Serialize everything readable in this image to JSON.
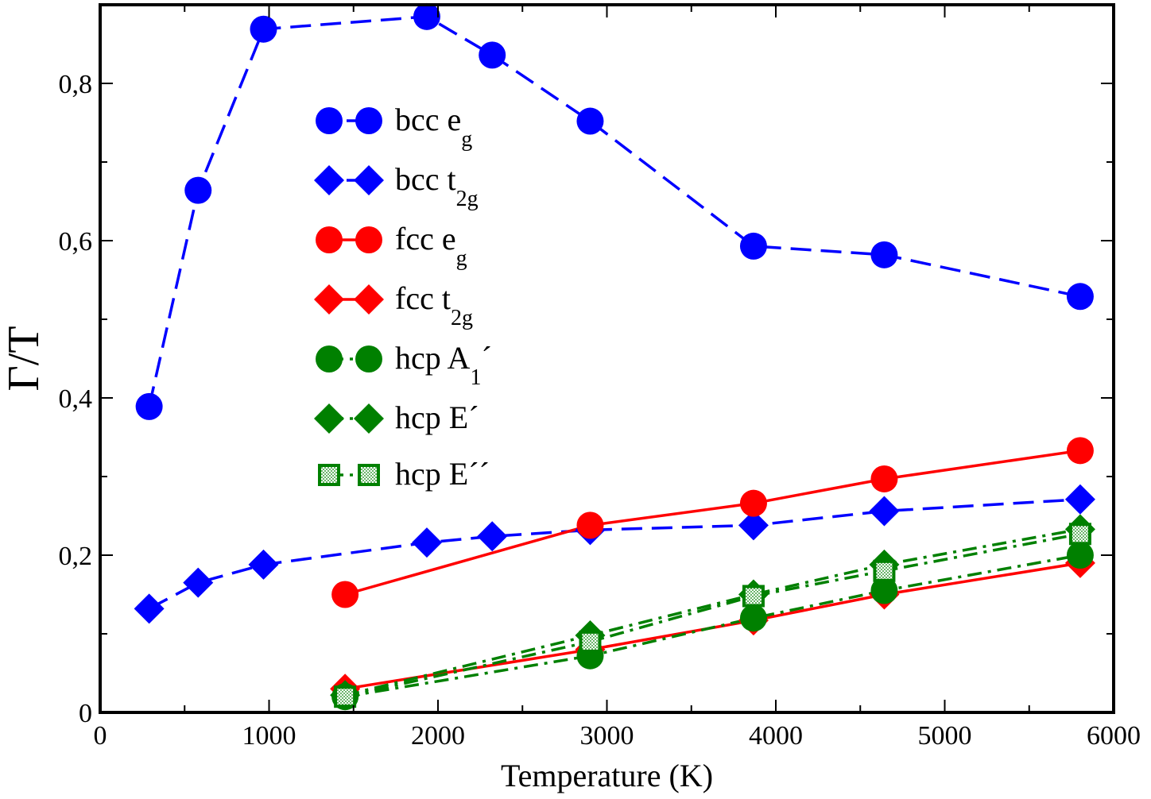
{
  "chart_data": {
    "type": "line",
    "title": "",
    "xlabel": "Temperature (K)",
    "ylabel": "Γ/T",
    "xlim": [
      0,
      6000
    ],
    "ylim": [
      0,
      0.9
    ],
    "x_ticks": [
      {
        "value": 0,
        "label": "0"
      },
      {
        "value": 1000,
        "label": "1000"
      },
      {
        "value": 2000,
        "label": "2000"
      },
      {
        "value": 3000,
        "label": "3000"
      },
      {
        "value": 4000,
        "label": "4000"
      },
      {
        "value": 5000,
        "label": "5000"
      },
      {
        "value": 6000,
        "label": "6000"
      }
    ],
    "y_ticks": [
      {
        "value": 0,
        "label": "0"
      },
      {
        "value": 0.2,
        "label": "0,2"
      },
      {
        "value": 0.4,
        "label": "0,4"
      },
      {
        "value": 0.6,
        "label": "0,6"
      },
      {
        "value": 0.8,
        "label": "0,8"
      }
    ],
    "grid": false,
    "legend_position": "upper-left-center",
    "series": [
      {
        "name": "bcc e_g",
        "label_main": "bcc e",
        "label_sub": "g",
        "label_sup": "",
        "color": "#0000ff",
        "line": "dashed",
        "marker": "circle",
        "x": [
          290,
          580,
          967,
          1934,
          2321,
          2901,
          3868,
          4642,
          5802
        ],
        "y": [
          0.389,
          0.664,
          0.869,
          0.885,
          0.836,
          0.752,
          0.593,
          0.582,
          0.529
        ]
      },
      {
        "name": "bcc t_2g",
        "label_main": "bcc t",
        "label_sub": "2g",
        "label_sup": "",
        "color": "#0000ff",
        "line": "dashed",
        "marker": "diamond",
        "x": [
          290,
          580,
          967,
          1934,
          2321,
          2901,
          3868,
          4642,
          5802
        ],
        "y": [
          0.132,
          0.165,
          0.188,
          0.216,
          0.224,
          0.232,
          0.238,
          0.256,
          0.271
        ]
      },
      {
        "name": "fcc e_g",
        "label_main": "fcc e",
        "label_sub": "g",
        "label_sup": "",
        "color": "#ff0000",
        "line": "solid",
        "marker": "circle",
        "x": [
          1450,
          2901,
          3868,
          4642,
          5802
        ],
        "y": [
          0.15,
          0.238,
          0.266,
          0.297,
          0.333
        ]
      },
      {
        "name": "fcc t_2g",
        "label_main": "fcc t",
        "label_sub": "2g",
        "label_sup": "",
        "color": "#ff0000",
        "line": "solid",
        "marker": "diamond",
        "x": [
          1450,
          2901,
          3868,
          4642,
          5802
        ],
        "y": [
          0.03,
          0.08,
          0.117,
          0.15,
          0.19
        ]
      },
      {
        "name": "hcp A_1´",
        "label_main": "hcp A",
        "label_sub": "1",
        "label_sup": "´",
        "color": "#008000",
        "line": "dashdot",
        "marker": "circle",
        "x": [
          1450,
          2901,
          3868,
          4642,
          5802
        ],
        "y": [
          0.02,
          0.072,
          0.12,
          0.155,
          0.2
        ]
      },
      {
        "name": "hcp E´",
        "label_main": "hcp E",
        "label_sub": "",
        "label_sup": "´",
        "color": "#008000",
        "line": "dashdot",
        "marker": "diamond",
        "x": [
          1450,
          2901,
          3868,
          4642,
          5802
        ],
        "y": [
          0.022,
          0.098,
          0.15,
          0.188,
          0.233
        ]
      },
      {
        "name": "hcp E´´",
        "label_main": "hcp E",
        "label_sub": "",
        "label_sup": "´´",
        "color": "#008000",
        "line": "dashdot",
        "marker": "square-dotted",
        "x": [
          1450,
          2901,
          3868,
          4642,
          5802
        ],
        "y": [
          0.02,
          0.09,
          0.148,
          0.18,
          0.227
        ]
      }
    ]
  }
}
